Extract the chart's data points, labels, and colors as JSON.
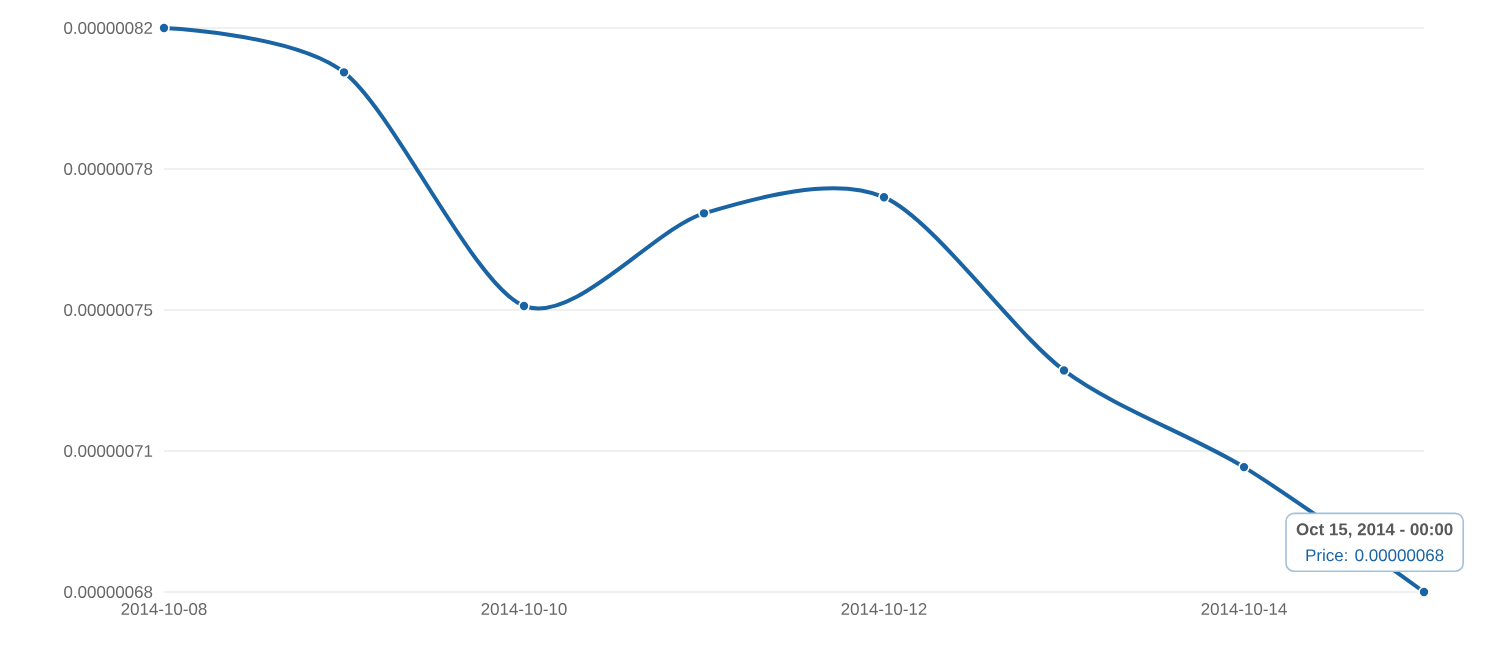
{
  "chart_data": {
    "type": "line",
    "x": [
      "2014-10-08",
      "2014-10-09",
      "2014-10-10",
      "2014-10-11",
      "2014-10-12",
      "2014-10-13",
      "2014-10-14",
      "2014-10-15"
    ],
    "values": [
      8.2e-07,
      8.09e-07,
      7.51e-07,
      7.74e-07,
      7.78e-07,
      7.35e-07,
      7.11e-07,
      6.8e-07
    ],
    "color": "#1a64a4",
    "xlim": [
      "2014-10-08",
      "2014-10-15"
    ],
    "xticks": [
      "2014-10-08",
      "2014-10-10",
      "2014-10-12",
      "2014-10-14"
    ],
    "ylim": [
      6.8e-07,
      8.2e-07
    ],
    "yticks": [
      {
        "value": 6.8e-07,
        "label": "0.00000068"
      },
      {
        "value": 7.15e-07,
        "label": "0.00000071"
      },
      {
        "value": 7.5e-07,
        "label": "0.00000075"
      },
      {
        "value": 7.85e-07,
        "label": "0.00000078"
      },
      {
        "value": 8.2e-07,
        "label": "0.00000082"
      }
    ],
    "grid": "y",
    "marker": "circle",
    "line_style": "solid",
    "annotations": [
      "Oct 15, 2014 - 00:00",
      "Price: 0.00000068"
    ]
  }
}
